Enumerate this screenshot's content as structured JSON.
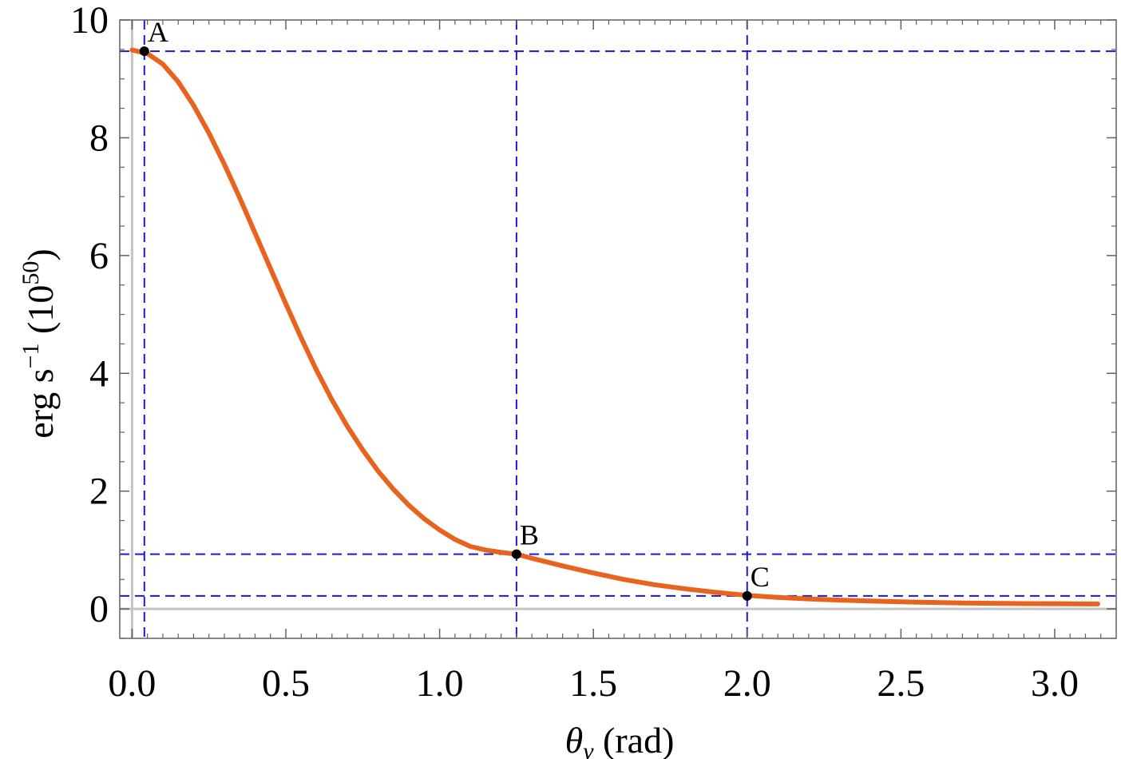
{
  "chart_data": {
    "type": "line",
    "xlabel": {
      "symbol": "θ",
      "subscript": "v",
      "unit": "(rad)"
    },
    "ylabel": {
      "base": "erg s",
      "exp": "−1",
      "scale_prefix": "(10",
      "scale_exp": "50",
      "scale_suffix": ")"
    },
    "xlim": [
      -0.04,
      3.2
    ],
    "ylim": [
      -0.5,
      10.0
    ],
    "xticks": [
      0.0,
      0.5,
      1.0,
      1.5,
      2.0,
      2.5,
      3.0
    ],
    "xtick_labels": [
      "0.0",
      "0.5",
      "1.0",
      "1.5",
      "2.0",
      "2.5",
      "3.0"
    ],
    "yticks": [
      0,
      2,
      4,
      6,
      8,
      10
    ],
    "ytick_labels": [
      "0",
      "2",
      "4",
      "6",
      "8",
      "10"
    ],
    "grid": false,
    "series": [
      {
        "color": "#e8641e",
        "points": [
          [
            0.0,
            9.49
          ],
          [
            0.05,
            9.43
          ],
          [
            0.1,
            9.25
          ],
          [
            0.15,
            8.95
          ],
          [
            0.2,
            8.55
          ],
          [
            0.25,
            8.08
          ],
          [
            0.3,
            7.55
          ],
          [
            0.35,
            6.98
          ],
          [
            0.4,
            6.38
          ],
          [
            0.45,
            5.78
          ],
          [
            0.5,
            5.18
          ],
          [
            0.55,
            4.6
          ],
          [
            0.6,
            4.05
          ],
          [
            0.65,
            3.55
          ],
          [
            0.7,
            3.1
          ],
          [
            0.75,
            2.7
          ],
          [
            0.8,
            2.34
          ],
          [
            0.85,
            2.03
          ],
          [
            0.9,
            1.76
          ],
          [
            0.95,
            1.53
          ],
          [
            1.0,
            1.34
          ],
          [
            1.05,
            1.18
          ],
          [
            1.1,
            1.06
          ],
          [
            1.15,
            1.0
          ],
          [
            1.2,
            0.96
          ],
          [
            1.25,
            0.93
          ],
          [
            1.3,
            0.86
          ],
          [
            1.4,
            0.73
          ],
          [
            1.5,
            0.61
          ],
          [
            1.6,
            0.5
          ],
          [
            1.7,
            0.41
          ],
          [
            1.8,
            0.34
          ],
          [
            1.9,
            0.28
          ],
          [
            2.0,
            0.23
          ],
          [
            2.1,
            0.195
          ],
          [
            2.2,
            0.17
          ],
          [
            2.3,
            0.15
          ],
          [
            2.4,
            0.135
          ],
          [
            2.5,
            0.12
          ],
          [
            2.6,
            0.11
          ],
          [
            2.7,
            0.1
          ],
          [
            2.8,
            0.095
          ],
          [
            2.9,
            0.09
          ],
          [
            3.0,
            0.088
          ],
          [
            3.1,
            0.085
          ],
          [
            3.14,
            0.085
          ]
        ]
      }
    ],
    "marked_points": [
      {
        "label": "A",
        "x": 0.04,
        "y": 9.47
      },
      {
        "label": "B",
        "x": 1.25,
        "y": 0.93
      },
      {
        "label": "C",
        "x": 2.0,
        "y": 0.22
      }
    ],
    "reference_line_color": "#1a1ad6"
  }
}
